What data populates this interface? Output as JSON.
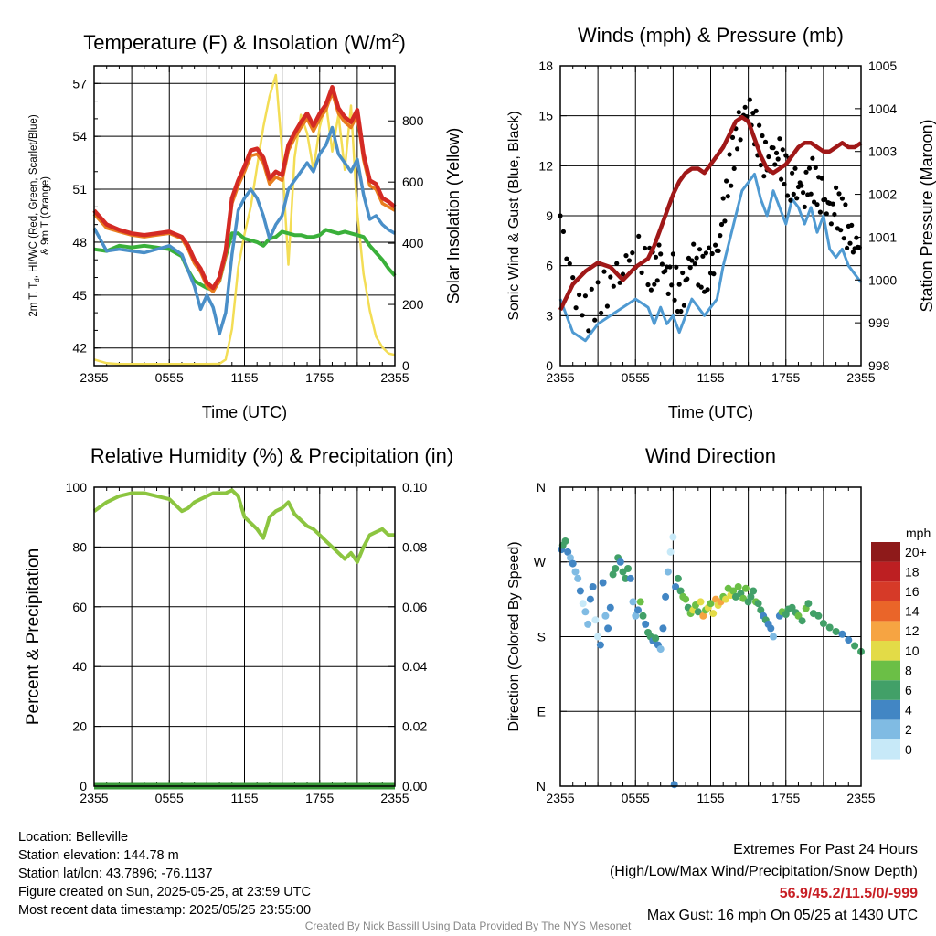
{
  "colors": {
    "temp": "#d42a24",
    "dewpoint": "#3ab03a",
    "heat_index": "#e2762a",
    "nine_m_temp": "#e87d1e",
    "wind_chill": "#4a8fc8",
    "insolation": "#f3dd55",
    "wind": "#4f9ad2",
    "gust": "#000000",
    "pressure": "#a01818",
    "rh": "#8cc540",
    "precip": "#3a9a3a"
  },
  "chart_data": [
    {
      "type": "line",
      "title": "Temperature (F) & Insolation (W/m²)",
      "xlabel": "Time (UTC)",
      "ylabel": "2m T, T<sub>d</sub>, HI/WC (Red, Green, Scarlet/Blue)|& 9m T (Orange)",
      "ylabel_right": "Solar Insolation (Yellow)",
      "x_ticks": [
        "2355",
        "0555",
        "1155",
        "1755",
        "2355"
      ],
      "ylim": [
        41,
        58
      ],
      "y_ticks": [
        42,
        45,
        48,
        51,
        54,
        57
      ],
      "ylim_right": [
        0,
        980
      ],
      "y_ticks_right": [
        0,
        200,
        400,
        600,
        800
      ],
      "x_hours": [
        0,
        1,
        2,
        3,
        4,
        5,
        6,
        7,
        7.5,
        8,
        8.5,
        9,
        9.5,
        10,
        10.5,
        11,
        11.5,
        12,
        12.5,
        13,
        13.5,
        14,
        14.5,
        15,
        15.5,
        16,
        16.5,
        17,
        17.5,
        18,
        18.5,
        19,
        19.5,
        20,
        20.5,
        21,
        21.5,
        22,
        22.5,
        23,
        23.5,
        24
      ],
      "series": [
        {
          "key": "temp",
          "color_key": "temp",
          "width": 4.5,
          "values": [
            49.8,
            49,
            48.7,
            48.5,
            48.4,
            48.5,
            48.6,
            48.3,
            47.8,
            47,
            46.5,
            45.7,
            45.4,
            46,
            47.5,
            50.5,
            51.5,
            52.3,
            53.2,
            53.3,
            52.8,
            51.6,
            52,
            51.8,
            53.5,
            54.2,
            54.8,
            55.3,
            54.6,
            55.3,
            55.8,
            56.8,
            55.6,
            55.1,
            54.8,
            55.5,
            53,
            51.5,
            51.3,
            50.5,
            50.3,
            50
          ]
        },
        {
          "key": "heat_index",
          "color_key": "nine_m_temp",
          "width": 3.5,
          "values": [
            49.6,
            48.8,
            48.6,
            48.4,
            48.3,
            48.4,
            48.5,
            48.2,
            47.6,
            46.8,
            46.3,
            45.5,
            45.2,
            45.8,
            47.2,
            50.2,
            51.2,
            52,
            52.9,
            53,
            52.5,
            51.3,
            51.7,
            51.5,
            53.2,
            53.9,
            54.5,
            55,
            54.3,
            55,
            55.5,
            56.5,
            55.3,
            54.8,
            54.5,
            55.2,
            52.7,
            51.2,
            51,
            50.2,
            50,
            49.8
          ]
        },
        {
          "key": "wind_chill",
          "color_key": "wind_chill",
          "width": 3.5,
          "values": [
            48.8,
            47.5,
            47.6,
            47.5,
            47.4,
            47.6,
            47.8,
            47.3,
            46.4,
            45.5,
            44.2,
            45,
            44.3,
            42.8,
            44,
            47.3,
            49.8,
            50.5,
            51,
            50.5,
            49.5,
            48.2,
            49,
            49.5,
            51,
            51.5,
            52,
            52.5,
            52,
            53,
            53.5,
            54.5,
            53,
            52.5,
            52,
            52.7,
            50.7,
            49.3,
            49.5,
            49,
            48.7,
            48.5
          ]
        },
        {
          "key": "dewpoint",
          "color_key": "dewpoint",
          "width": 4,
          "values": [
            47.6,
            47.5,
            47.8,
            47.7,
            47.8,
            47.7,
            47.6,
            47.2,
            46.4,
            45.8,
            45.6,
            45.4,
            45.3,
            45.8,
            47.2,
            48.5,
            48.5,
            48.2,
            48.1,
            48,
            47.8,
            48.2,
            48.3,
            48.6,
            48.5,
            48.4,
            48.4,
            48.3,
            48.3,
            48.4,
            48.7,
            48.6,
            48.5,
            48.6,
            48.5,
            48.4,
            48.3,
            47.8,
            47.4,
            47,
            46.5,
            46.1
          ]
        }
      ],
      "insolation_x_hours": [
        0,
        1,
        2,
        3,
        4,
        5,
        6,
        7,
        8,
        9,
        10,
        10.5,
        11,
        11.5,
        12,
        12.5,
        13,
        13.5,
        14,
        14.5,
        15,
        15.25,
        15.5,
        15.75,
        16,
        16.5,
        17,
        17.5,
        18,
        18.5,
        19,
        19.5,
        20,
        20.5,
        21,
        21.5,
        22,
        22.5,
        23,
        23.5,
        24
      ],
      "insolation_values": [
        20,
        8,
        5,
        5,
        5,
        5,
        5,
        5,
        5,
        5,
        6,
        20,
        120,
        320,
        430,
        520,
        650,
        780,
        880,
        950,
        700,
        500,
        330,
        500,
        680,
        820,
        760,
        640,
        780,
        860,
        700,
        820,
        640,
        850,
        500,
        300,
        180,
        95,
        60,
        40,
        35
      ]
    },
    {
      "type": "line",
      "title": "Winds (mph) & Pressure (mb)",
      "xlabel": "Time (UTC)",
      "ylabel": "Sonic Wind & Gust (Blue, Black)",
      "ylabel_right": "Station Pressure (Maroon)",
      "x_ticks": [
        "2355",
        "0555",
        "1155",
        "1755",
        "2355"
      ],
      "ylim": [
        0,
        18
      ],
      "y_ticks": [
        0,
        3,
        6,
        9,
        12,
        15,
        18
      ],
      "ylim_right": [
        998,
        1005
      ],
      "y_ticks_right": [
        998,
        999,
        1000,
        1001,
        1002,
        1003,
        1004,
        1005
      ],
      "x_hours": [
        0,
        1,
        2,
        3,
        4,
        5,
        6,
        7,
        7.5,
        8,
        8.5,
        9,
        9.5,
        10,
        10.5,
        11,
        11.5,
        12,
        12.5,
        13,
        13.5,
        14,
        14.5,
        15,
        15.5,
        16,
        16.5,
        17,
        17.5,
        18,
        18.5,
        19,
        19.5,
        20,
        20.5,
        21,
        21.5,
        22,
        22.5,
        23,
        23.5,
        24
      ],
      "wind_values": [
        4,
        2,
        1.5,
        2.5,
        3,
        3.5,
        4,
        3.5,
        2.5,
        3.5,
        2.5,
        3,
        2,
        3,
        4,
        3.5,
        3,
        3.5,
        4,
        6,
        7.5,
        9,
        10.5,
        11,
        11.5,
        10,
        9,
        10.5,
        9.5,
        8.5,
        10,
        9.5,
        8.5,
        9.5,
        8,
        9,
        7,
        6.5,
        7,
        6,
        5.5,
        5
      ],
      "gust_values": [
        9,
        4.5,
        3,
        4,
        5,
        6,
        7,
        6,
        5.5,
        6.5,
        5,
        5.5,
        4,
        5,
        7,
        6,
        5.5,
        6,
        6.5,
        9,
        11.5,
        13.5,
        15,
        15.5,
        14.5,
        13,
        12,
        12.5,
        12.5,
        11.5,
        11,
        11,
        10.5,
        11.5,
        10.5,
        10,
        9,
        9.5,
        9,
        8,
        7.5,
        7
      ],
      "pressure_values": [
        999.3,
        999.9,
        1000.2,
        1000.4,
        1000.3,
        1000,
        1000.3,
        1000.5,
        1000.8,
        1001.2,
        1001.6,
        1002,
        1002.3,
        1002.5,
        1002.6,
        1002.6,
        1002.5,
        1002.7,
        1002.9,
        1003.1,
        1003.4,
        1003.7,
        1003.8,
        1003.7,
        1003.3,
        1002.9,
        1002.6,
        1002.5,
        1002.6,
        1002.7,
        1002.9,
        1003.1,
        1003.2,
        1003.2,
        1003.1,
        1003,
        1003,
        1003.1,
        1003.2,
        1003.1,
        1003.1,
        1003.2
      ]
    },
    {
      "type": "line",
      "title": "Relative Humidity (%) & Precipitation (in)",
      "xlabel": "",
      "ylabel": "Percent & Precipitation",
      "x_ticks": [
        "2355",
        "0555",
        "1155",
        "1755",
        "2355"
      ],
      "ylim": [
        0,
        100
      ],
      "y_ticks": [
        0,
        20,
        40,
        60,
        80,
        100
      ],
      "ylim_right": [
        0,
        0.1
      ],
      "y_ticks_right": [
        "0.00",
        "0.02",
        "0.04",
        "0.06",
        "0.08",
        "0.10"
      ],
      "x_hours": [
        0,
        1,
        2,
        3,
        4,
        5,
        6,
        7,
        7.5,
        8,
        8.5,
        9,
        9.5,
        10,
        10.5,
        11,
        11.5,
        12,
        12.5,
        13,
        13.5,
        14,
        14.5,
        15,
        15.5,
        16,
        16.5,
        17,
        17.5,
        18,
        18.5,
        19,
        19.5,
        20,
        20.5,
        21,
        21.5,
        22,
        22.5,
        23,
        23.5,
        24
      ],
      "rh_values": [
        92,
        95,
        97,
        98,
        98,
        97,
        96,
        92,
        93,
        95,
        96,
        97,
        98,
        98,
        98,
        99,
        97,
        90,
        88,
        86,
        83,
        90,
        92,
        93,
        95,
        91,
        89,
        87,
        86,
        84,
        82,
        80,
        78,
        76,
        78,
        75,
        80,
        84,
        85,
        86,
        84,
        84
      ],
      "precip_values": [
        0,
        0,
        0,
        0,
        0,
        0,
        0,
        0,
        0,
        0,
        0,
        0,
        0,
        0,
        0,
        0,
        0,
        0,
        0,
        0,
        0,
        0,
        0,
        0,
        0,
        0,
        0,
        0,
        0,
        0,
        0,
        0,
        0,
        0,
        0,
        0,
        0,
        0,
        0,
        0,
        0,
        0
      ]
    },
    {
      "type": "scatter",
      "title": "Wind Direction",
      "xlabel": "",
      "ylabel": "Direction (Colored By Speed)",
      "x_ticks": [
        "2355",
        "0555",
        "1155",
        "1755",
        "2355"
      ],
      "y_ticks": [
        "N",
        "E",
        "S",
        "W",
        "N"
      ],
      "ylim": [
        0,
        360
      ],
      "legend_title": "mph",
      "legend_labels": [
        "0",
        "2",
        "4",
        "6",
        "8",
        "10",
        "12",
        "14",
        "16",
        "18",
        "20+"
      ],
      "legend_colors": [
        "#c7e9f8",
        "#80bbe3",
        "#4286c4",
        "#42a068",
        "#6bbf46",
        "#e3db47",
        "#f6a442",
        "#ea6529",
        "#d63a28",
        "#bd1f22",
        "#8e1a1a"
      ],
      "points": [
        [
          0.1,
          285,
          2
        ],
        [
          0.2,
          290,
          3
        ],
        [
          0.4,
          295,
          3
        ],
        [
          0.6,
          282,
          2
        ],
        [
          0.8,
          275,
          1
        ],
        [
          1.0,
          268,
          2
        ],
        [
          1.2,
          258,
          1
        ],
        [
          1.4,
          250,
          1
        ],
        [
          1.6,
          235,
          2
        ],
        [
          1.8,
          220,
          0
        ],
        [
          2.0,
          210,
          1
        ],
        [
          2.2,
          195,
          1
        ],
        [
          2.4,
          225,
          2
        ],
        [
          2.6,
          240,
          2
        ],
        [
          2.8,
          200,
          0
        ],
        [
          3.0,
          180,
          0
        ],
        [
          3.2,
          170,
          2
        ],
        [
          3.4,
          245,
          2
        ],
        [
          3.6,
          205,
          1
        ],
        [
          3.8,
          190,
          2
        ],
        [
          4.0,
          215,
          2
        ],
        [
          4.2,
          255,
          3
        ],
        [
          4.4,
          262,
          3
        ],
        [
          4.6,
          275,
          3
        ],
        [
          4.8,
          270,
          2
        ],
        [
          5.0,
          258,
          3
        ],
        [
          5.2,
          250,
          3
        ],
        [
          5.4,
          262,
          3
        ],
        [
          5.6,
          250,
          2
        ],
        [
          5.8,
          222,
          1
        ],
        [
          6.0,
          205,
          1
        ],
        [
          6.2,
          212,
          2
        ],
        [
          6.4,
          222,
          4
        ],
        [
          6.6,
          205,
          3
        ],
        [
          6.8,
          195,
          2
        ],
        [
          7.0,
          185,
          3
        ],
        [
          7.2,
          180,
          3
        ],
        [
          7.4,
          175,
          2
        ],
        [
          7.6,
          178,
          3
        ],
        [
          7.8,
          170,
          2
        ],
        [
          8.0,
          165,
          1
        ],
        [
          8.2,
          190,
          2
        ],
        [
          8.4,
          228,
          2
        ],
        [
          8.6,
          258,
          1
        ],
        [
          8.8,
          282,
          0
        ],
        [
          9.0,
          300,
          0
        ],
        [
          9.1,
          2,
          2
        ],
        [
          9.2,
          240,
          2
        ],
        [
          9.4,
          250,
          3
        ],
        [
          9.6,
          235,
          3
        ],
        [
          9.8,
          228,
          4
        ],
        [
          10.0,
          225,
          4
        ],
        [
          10.2,
          215,
          3
        ],
        [
          10.4,
          208,
          4
        ],
        [
          10.6,
          212,
          5
        ],
        [
          10.8,
          218,
          4
        ],
        [
          11.0,
          210,
          3
        ],
        [
          11.2,
          222,
          5
        ],
        [
          11.4,
          205,
          6
        ],
        [
          11.6,
          212,
          4
        ],
        [
          11.8,
          215,
          5
        ],
        [
          12.0,
          220,
          4
        ],
        [
          12.2,
          208,
          5
        ],
        [
          12.4,
          225,
          6
        ],
        [
          12.6,
          218,
          5
        ],
        [
          12.8,
          222,
          6
        ],
        [
          13.0,
          228,
          4
        ],
        [
          13.2,
          225,
          5
        ],
        [
          13.4,
          238,
          4
        ],
        [
          13.6,
          230,
          5
        ],
        [
          13.8,
          235,
          4
        ],
        [
          14.0,
          228,
          3
        ],
        [
          14.2,
          240,
          4
        ],
        [
          14.4,
          232,
          3
        ],
        [
          14.6,
          226,
          4
        ],
        [
          14.8,
          238,
          4
        ],
        [
          15.0,
          222,
          3
        ],
        [
          15.2,
          228,
          3
        ],
        [
          15.4,
          235,
          3
        ],
        [
          15.6,
          222,
          4
        ],
        [
          15.8,
          220,
          3
        ],
        [
          16.0,
          212,
          3
        ],
        [
          16.2,
          205,
          2
        ],
        [
          16.4,
          200,
          3
        ],
        [
          16.6,
          195,
          2
        ],
        [
          16.8,
          190,
          2
        ],
        [
          17.0,
          180,
          1
        ],
        [
          17.5,
          205,
          2
        ],
        [
          17.7,
          210,
          4
        ],
        [
          18.0,
          207,
          3
        ],
        [
          18.2,
          213,
          3
        ],
        [
          18.5,
          215,
          3
        ],
        [
          18.8,
          209,
          3
        ],
        [
          19.0,
          205,
          4
        ],
        [
          19.3,
          199,
          3
        ],
        [
          19.6,
          214,
          4
        ],
        [
          19.8,
          220,
          3
        ],
        [
          20.2,
          208,
          3
        ],
        [
          20.6,
          205,
          3
        ],
        [
          21.0,
          196,
          3
        ],
        [
          21.5,
          191,
          3
        ],
        [
          22.0,
          186,
          3
        ],
        [
          22.5,
          183,
          2
        ],
        [
          23.0,
          176,
          2
        ],
        [
          23.5,
          169,
          3
        ],
        [
          24.0,
          162,
          3
        ]
      ]
    }
  ],
  "info": {
    "location": "Location: Belleville",
    "elevation": "Station elevation: 144.78 m",
    "latlon": "Station lat/lon: 43.7896; -76.1137",
    "created": "Figure created on Sun, 2025-05-25, at 23:59 UTC",
    "recent": "Most recent data timestamp: 2025/05/25 23:55:00",
    "extremes_title": "Extremes For Past 24 Hours",
    "extremes_subtitle": "(High/Low/Max Wind/Precipitation/Snow Depth)",
    "extremes_values": "56.9/45.2/11.5/0/-999",
    "max_gust": "Max Gust: 16 mph On 05/25 at 1430 UTC",
    "credit": "Created By Nick Bassill Using Data Provided By The NYS Mesonet"
  }
}
